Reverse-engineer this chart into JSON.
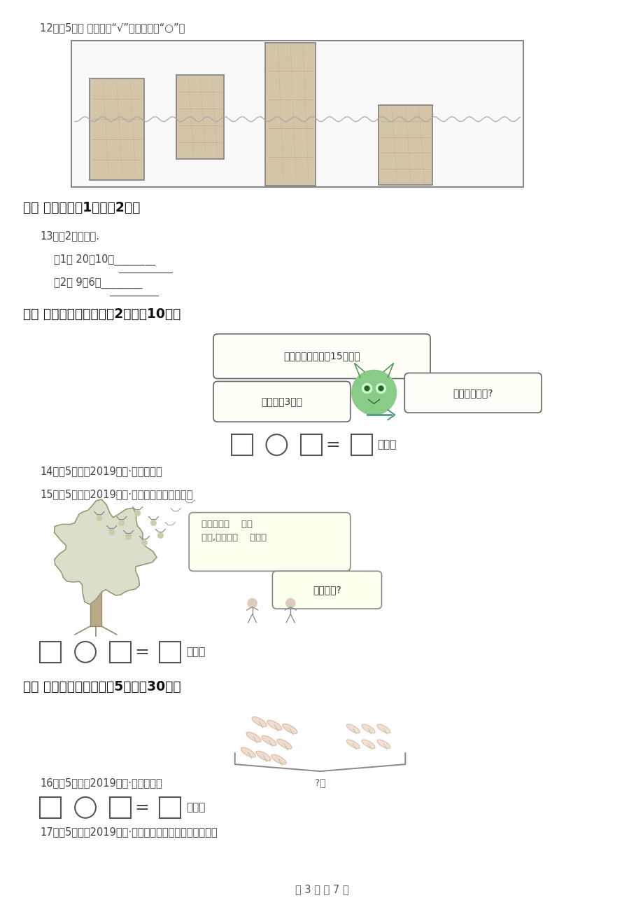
{
  "bg_color": "#ffffff",
  "text_color": "#333333",
  "page_width": 9.2,
  "page_height": 13.02,
  "q12_text": "12．（5分） 最重的画“√”，最轻的画“○”。",
  "sec4_text": "四、 口算。（共1题；共2分）",
  "q13_text": "13．（2分）口算.",
  "q13_1_text": "（1） 20－10＝________",
  "q13_2_text": "（2） 9＋6＝________",
  "sec5_text": "五、 看图列式计算。（共2题；共10分）",
  "bubble1_text": "妈妈和我一共鈣了15条鱼。",
  "bubble2_text": "我只鈣了3条。",
  "bubble3_text": "妈妈鈣了几条?",
  "q14_text": "14．（5分）（2019一上·河北期末）",
  "q15_text": "15．（5分）（2019一上·象山期末）还剩几只？",
  "bird_bubble_text": "树上原有（    ）只\n小鸟,飞走了（    ）只。",
  "bird_bubble2_text": "还剩几只?",
  "sec6_text": "六、 列式解决问题。（共5题；共30分）",
  "q16_text": "16．（5分）（2019一上·临海期末）",
  "q17_text": "17．（5分）（2019一上·营山期末）原来有多少个草莓？",
  "footer_text": "第 3 页 共 7 页",
  "label_tiao": "（条）",
  "label_zhi": "（只）",
  "label_ge": "（个）",
  "carrot_question": "?个"
}
